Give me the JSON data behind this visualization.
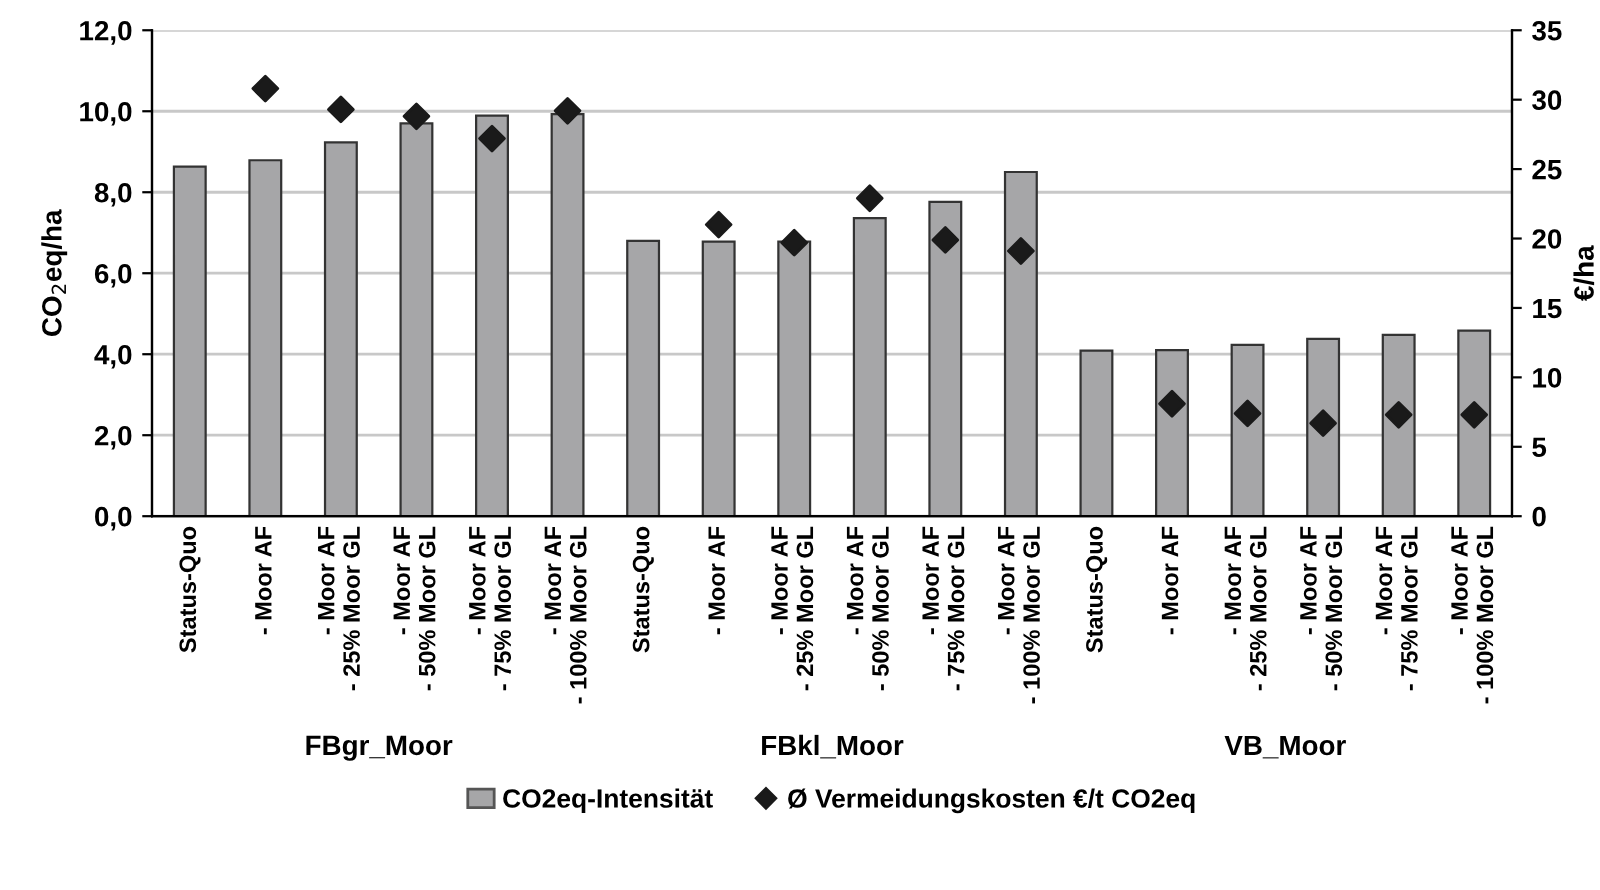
{
  "chart_data": {
    "type": "bar",
    "ylabel": "CO$_{2}$eq/ha",
    "y2label": "€/ha",
    "categories": [
      "Status-Quo",
      "- Moor AF",
      "- Moor AF\n- 25% Moor GL",
      "- Moor AF\n- 50% Moor GL",
      "- Moor AF\n- 75% Moor GL",
      "- Moor AF\n- 100% Moor GL",
      "Status-Quo",
      "- Moor AF",
      "- Moor AF\n- 25% Moor GL",
      "- Moor AF\n- 50% Moor GL",
      "- Moor AF\n- 75% Moor GL",
      "- Moor AF\n- 100% Moor GL",
      "Status-Quo",
      "- Moor AF",
      "- Moor AF\n- 25% Moor GL",
      "- Moor AF\n- 50% Moor GL",
      "- Moor AF\n- 75% Moor GL",
      "- Moor AF\n- 100% Moor GL"
    ],
    "series": [
      {
        "name": "CO2eq-Intensität",
        "color": "#a6a6a8",
        "values": [
          8.63,
          8.79,
          9.23,
          9.7,
          9.89,
          9.93,
          6.8,
          6.78,
          6.78,
          7.36,
          7.76,
          8.5,
          4.09,
          4.1,
          4.23,
          4.38,
          4.48,
          4.58
        ]
      },
      {
        "name": "Ø Vermeidungskosten €/t CO2eq",
        "type": "scatter",
        "axis": "y2",
        "color": "#1a1a1a",
        "marker": "diamond",
        "values": [
          null,
          30.8,
          29.3,
          28.8,
          27.2,
          29.2,
          null,
          21.0,
          19.7,
          22.9,
          19.9,
          19.1,
          null,
          8.1,
          7.4,
          6.7,
          7.3,
          7.3
        ]
      }
    ],
    "ylim": [
      0,
      12
    ],
    "yticks": [
      {
        "value": 0,
        "label": "0,0"
      },
      {
        "value": 2,
        "label": "2,0"
      },
      {
        "value": 4,
        "label": "4,0"
      },
      {
        "value": 6,
        "label": "6,0"
      },
      {
        "value": 8,
        "label": "8,0"
      },
      {
        "value": 10,
        "label": "10,0"
      },
      {
        "value": 12,
        "label": "12,0"
      }
    ],
    "y2lim": [
      0,
      35
    ],
    "y2ticks": [
      0,
      5,
      10,
      15,
      20,
      25,
      30,
      35
    ],
    "annotations": [
      "FBgr_Moor",
      "FBkl_Moor",
      "VB_Moor"
    ],
    "grid": "y",
    "legend": "bottom"
  }
}
